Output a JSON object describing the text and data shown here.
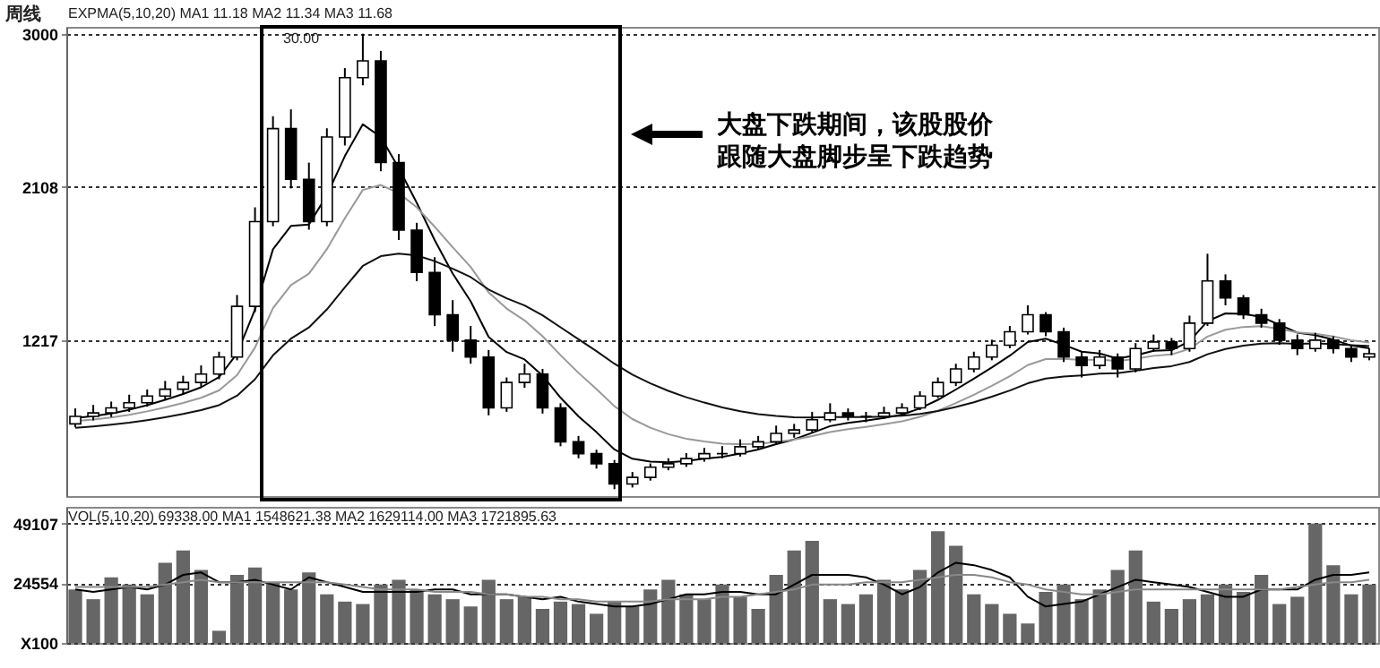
{
  "chart_data": [
    {
      "type": "candlestick",
      "color": "#000000",
      "categories": [
        null,
        null,
        null,
        null,
        null,
        null,
        null,
        null,
        null,
        null,
        null,
        null,
        null,
        null,
        null,
        null,
        null,
        null,
        null,
        null,
        null,
        null,
        null,
        null,
        null,
        null,
        null,
        null,
        null,
        null,
        null,
        null,
        null,
        null,
        null,
        null,
        null,
        null,
        null,
        null,
        null,
        null,
        null,
        null,
        null,
        null,
        null,
        null,
        null,
        null,
        null,
        null,
        null,
        null,
        null,
        null,
        null,
        null,
        null,
        null,
        null,
        null,
        null,
        null,
        null,
        null,
        null,
        null,
        null,
        null,
        null,
        null,
        null
      ],
      "ohlc": [
        [
          730,
          820,
          710,
          774
        ],
        [
          774,
          840,
          750,
          794
        ],
        [
          794,
          860,
          770,
          823
        ],
        [
          823,
          900,
          800,
          853
        ],
        [
          853,
          930,
          830,
          892
        ],
        [
          892,
          980,
          870,
          932
        ],
        [
          932,
          1010,
          900,
          971
        ],
        [
          971,
          1070,
          940,
          1020
        ],
        [
          1020,
          1150,
          990,
          1119
        ],
        [
          1119,
          1480,
          1100,
          1414
        ],
        [
          1414,
          1990,
          1380,
          1907
        ],
        [
          1907,
          2520,
          1880,
          2448
        ],
        [
          2448,
          2560,
          2100,
          2153
        ],
        [
          2153,
          2250,
          1860,
          1907
        ],
        [
          1907,
          2450,
          1880,
          2399
        ],
        [
          2399,
          2800,
          2350,
          2744
        ],
        [
          2744,
          3000,
          2700,
          2842
        ],
        [
          2842,
          2900,
          2200,
          2251
        ],
        [
          2251,
          2300,
          1800,
          1857
        ],
        [
          1857,
          1900,
          1560,
          1611
        ],
        [
          1611,
          1700,
          1300,
          1365
        ],
        [
          1365,
          1450,
          1150,
          1217
        ],
        [
          1217,
          1300,
          1080,
          1119
        ],
        [
          1119,
          1160,
          780,
          823
        ],
        [
          823,
          1000,
          800,
          971
        ],
        [
          971,
          1080,
          940,
          1020
        ],
        [
          1020,
          1050,
          790,
          823
        ],
        [
          823,
          850,
          600,
          626
        ],
        [
          626,
          660,
          530,
          557
        ],
        [
          557,
          580,
          470,
          498
        ],
        [
          498,
          520,
          350,
          380
        ],
        [
          380,
          450,
          360,
          419
        ],
        [
          419,
          500,
          400,
          478
        ],
        [
          478,
          530,
          460,
          498
        ],
        [
          498,
          560,
          480,
          528
        ],
        [
          528,
          590,
          510,
          557
        ],
        [
          557,
          600,
          530,
          557
        ],
        [
          557,
          640,
          540,
          597
        ],
        [
          597,
          660,
          580,
          626
        ],
        [
          626,
          720,
          610,
          675
        ],
        [
          675,
          730,
          650,
          695
        ],
        [
          695,
          800,
          680,
          754
        ],
        [
          754,
          850,
          740,
          794
        ],
        [
          794,
          820,
          750,
          774
        ],
        [
          774,
          800,
          740,
          774
        ],
        [
          774,
          830,
          760,
          794
        ],
        [
          794,
          850,
          780,
          823
        ],
        [
          823,
          920,
          810,
          892
        ],
        [
          892,
          1000,
          880,
          971
        ],
        [
          971,
          1080,
          950,
          1050
        ],
        [
          1050,
          1150,
          1030,
          1119
        ],
        [
          1119,
          1220,
          1100,
          1188
        ],
        [
          1188,
          1300,
          1170,
          1266
        ],
        [
          1266,
          1420,
          1250,
          1365
        ],
        [
          1365,
          1380,
          1240,
          1266
        ],
        [
          1266,
          1290,
          1090,
          1119
        ],
        [
          1119,
          1150,
          1000,
          1070
        ],
        [
          1070,
          1160,
          1050,
          1119
        ],
        [
          1119,
          1140,
          1000,
          1050
        ],
        [
          1050,
          1200,
          1030,
          1168
        ],
        [
          1168,
          1250,
          1150,
          1207
        ],
        [
          1207,
          1230,
          1130,
          1168
        ],
        [
          1168,
          1360,
          1150,
          1316
        ],
        [
          1316,
          1720,
          1300,
          1562
        ],
        [
          1562,
          1600,
          1420,
          1463
        ],
        [
          1463,
          1480,
          1340,
          1365
        ],
        [
          1365,
          1400,
          1290,
          1316
        ],
        [
          1316,
          1340,
          1190,
          1217
        ],
        [
          1217,
          1250,
          1130,
          1168
        ],
        [
          1168,
          1260,
          1150,
          1217
        ],
        [
          1217,
          1240,
          1140,
          1168
        ],
        [
          1168,
          1190,
          1090,
          1119
        ],
        [
          1119,
          1170,
          1100,
          1138
        ]
      ],
      "series": [
        {
          "type": "line",
          "color": "#000000",
          "values": [
            765,
            775,
            791,
            812,
            839,
            870,
            904,
            943,
            1002,
            1139,
            1395,
            1746,
            1882,
            1890,
            2060,
            2288,
            2473,
            2399,
            2218,
            2016,
            1799,
            1605,
            1443,
            1236,
            1148,
            1105,
            1011,
            883,
            774,
            682,
            581,
            527,
            511,
            507,
            514,
            528,
            538,
            558,
            581,
            612,
            640,
            678,
            717,
            736,
            749,
            764,
            784,
            820,
            870,
            930,
            993,
            1058,
            1127,
            1206,
            1226,
            1190,
            1150,
            1140,
            1110,
            1129,
            1155,
            1159,
            1211,
            1328,
            1373,
            1370,
            1352,
            1307,
            1261,
            1246,
            1220,
            1186,
            1170
          ]
        },
        {
          "type": "line",
          "color": "#999999",
          "values": [
            746,
            755,
            767,
            783,
            803,
            826,
            852,
            882,
            925,
            1013,
            1174,
            1403,
            1538,
            1604,
            1747,
            1926,
            2091,
            2120,
            2073,
            1990,
            1877,
            1758,
            1643,
            1495,
            1401,
            1332,
            1240,
            1130,
            1027,
            932,
            833,
            758,
            708,
            670,
            644,
            628,
            615,
            612,
            614,
            625,
            638,
            659,
            683,
            699,
            713,
            728,
            745,
            771,
            807,
            851,
            899,
            951,
            1008,
            1072,
            1107,
            1109,
            1102,
            1105,
            1095,
            1108,
            1126,
            1134,
            1167,
            1238,
            1278,
            1294,
            1298,
            1283,
            1262,
            1254,
            1239,
            1217,
            1203
          ]
        },
        {
          "type": "line",
          "color": "#111111",
          "values": [
            707,
            715,
            725,
            737,
            752,
            769,
            788,
            810,
            839,
            894,
            990,
            1129,
            1226,
            1291,
            1396,
            1524,
            1649,
            1706,
            1720,
            1710,
            1677,
            1633,
            1584,
            1512,
            1461,
            1419,
            1362,
            1292,
            1222,
            1153,
            1080,
            1017,
            966,
            922,
            885,
            854,
            826,
            804,
            787,
            776,
            768,
            767,
            770,
            770,
            770,
            772,
            777,
            788,
            805,
            828,
            856,
            888,
            924,
            966,
            994,
            1006,
            1012,
            1022,
            1025,
            1039,
            1055,
            1066,
            1090,
            1135,
            1166,
            1185,
            1197,
            1199,
            1196,
            1198,
            1195,
            1188,
            1183
          ]
        }
      ],
      "ylim": [
        310,
        3040
      ],
      "yticks": [
        1217,
        2108,
        3000
      ],
      "grid": "y",
      "annotations": [
        "周线",
        "EXPMA(5,10,20) MA1 11.18 MA2 11.34 MA3 11.68",
        "30.00",
        "大盘下跌期间，该股股价跟随大盘脚步呈下跌趋势"
      ]
    },
    {
      "type": "bar",
      "categories": [
        null,
        null,
        null,
        null,
        null,
        null,
        null,
        null,
        null,
        null,
        null,
        null,
        null,
        null,
        null,
        null,
        null,
        null,
        null,
        null,
        null,
        null,
        null,
        null,
        null,
        null,
        null,
        null,
        null,
        null,
        null,
        null,
        null,
        null,
        null,
        null,
        null,
        null,
        null,
        null,
        null,
        null,
        null,
        null,
        null,
        null,
        null,
        null,
        null,
        null,
        null,
        null,
        null,
        null,
        null,
        null,
        null,
        null,
        null,
        null,
        null,
        null,
        null,
        null,
        null,
        null,
        null,
        null,
        null,
        null,
        null,
        null,
        null
      ],
      "series": [
        {
          "type": "bar",
          "color": "#666666",
          "values": [
            22000,
            18000,
            27000,
            24000,
            20000,
            33000,
            38000,
            30000,
            5000,
            28000,
            31000,
            25000,
            22000,
            29000,
            20000,
            17000,
            16000,
            24000,
            26000,
            22000,
            20000,
            18000,
            15000,
            26000,
            18000,
            19000,
            14000,
            17000,
            16000,
            12000,
            17000,
            15000,
            22000,
            26000,
            20000,
            18000,
            24000,
            19000,
            14000,
            28000,
            38000,
            42000,
            18000,
            16000,
            20000,
            26000,
            22000,
            30000,
            46000,
            40000,
            20000,
            16000,
            12000,
            8000,
            21000,
            24000,
            18000,
            22000,
            30000,
            38000,
            17000,
            14000,
            18000,
            20000,
            24000,
            21000,
            28000,
            16000,
            19000,
            49107,
            32000,
            20000,
            24000
          ]
        },
        {
          "type": "line",
          "color": "#000000",
          "values": [
            22000,
            21000,
            22000,
            23000,
            22000,
            24000,
            28000,
            29000,
            25000,
            25000,
            26000,
            24000,
            22000,
            27000,
            25000,
            23000,
            21000,
            21000,
            21000,
            21000,
            22000,
            22000,
            20000,
            20000,
            20000,
            19000,
            18000,
            19000,
            17000,
            16000,
            15000,
            15000,
            16000,
            18000,
            20000,
            20000,
            21000,
            21000,
            20000,
            20000,
            24000,
            28000,
            28000,
            28000,
            27000,
            24000,
            20000,
            23000,
            29000,
            33000,
            32000,
            30000,
            27000,
            19000,
            15000,
            16000,
            17000,
            20000,
            23000,
            26000,
            25000,
            24000,
            23000,
            21000,
            19000,
            19000,
            22000,
            22000,
            22000,
            26000,
            28000,
            28000,
            29000
          ]
        },
        {
          "type": "line",
          "color": "#888888",
          "values": [
            23000,
            23000,
            23000,
            23000,
            23000,
            24000,
            25000,
            26000,
            25000,
            25000,
            25000,
            25000,
            25000,
            25000,
            25000,
            24000,
            23000,
            22000,
            22000,
            22000,
            21000,
            21000,
            21000,
            20000,
            20000,
            19000,
            19000,
            18000,
            18000,
            17000,
            17000,
            17000,
            17000,
            18000,
            18000,
            18000,
            19000,
            19000,
            20000,
            21000,
            22000,
            24000,
            24000,
            24000,
            25000,
            25000,
            25000,
            26000,
            27000,
            28000,
            28000,
            27000,
            25000,
            24000,
            22000,
            21000,
            20000,
            20000,
            21000,
            22000,
            22000,
            22000,
            22000,
            22000,
            22000,
            22000,
            22000,
            22000,
            23000,
            24000,
            25000,
            25000,
            26000
          ]
        }
      ],
      "ylim": [
        0,
        56000
      ],
      "yticks": [
        {
          "value": 0,
          "label": "X100"
        },
        24554,
        49107
      ],
      "grid": "y",
      "annotations": [
        "VOL(5,10,20) 69338.00 MA1 1548621.38 MA2 1629114.00 MA3 1721895.63"
      ]
    }
  ]
}
